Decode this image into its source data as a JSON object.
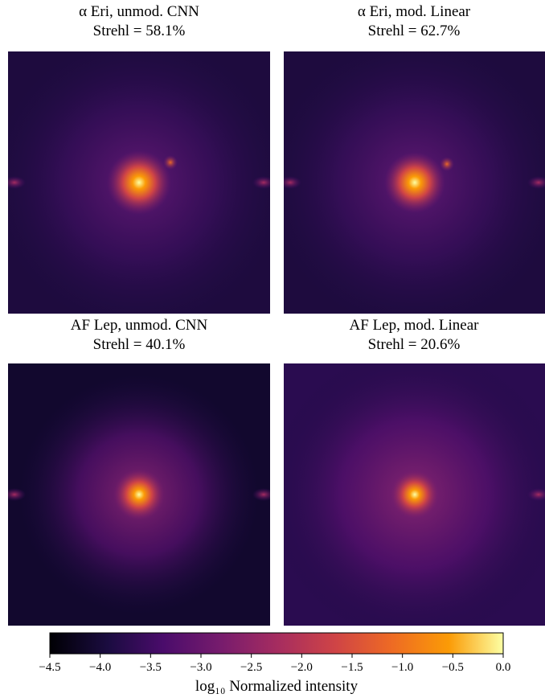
{
  "panels": [
    {
      "title": "α Eri, unmod. CNN",
      "subtitle": "Strehl = 58.1%"
    },
    {
      "title": "α Eri, mod. Linear",
      "subtitle": "Strehl = 62.7%"
    },
    {
      "title": "AF Lep, unmod. CNN",
      "subtitle": "Strehl = 40.1%"
    },
    {
      "title": "AF Lep, mod. Linear",
      "subtitle": "Strehl = 20.6%"
    }
  ],
  "colorbar": {
    "label": "log₁₀ Normalized intensity",
    "lim": [
      -4.5,
      0
    ],
    "ticks": [
      {
        "value": -4.5,
        "label": "−4.5"
      },
      {
        "value": -4,
        "label": "−4.0"
      },
      {
        "value": -3.5,
        "label": "−3.5"
      },
      {
        "value": -3,
        "label": "−3.0"
      },
      {
        "value": -2.5,
        "label": "−2.5"
      },
      {
        "value": -2,
        "label": "−2.0"
      },
      {
        "value": -1.5,
        "label": "−1.5"
      },
      {
        "value": -1,
        "label": "−1.0"
      },
      {
        "value": -0.5,
        "label": "−0.5"
      },
      {
        "value": 0,
        "label": "0.0"
      }
    ]
  }
}
